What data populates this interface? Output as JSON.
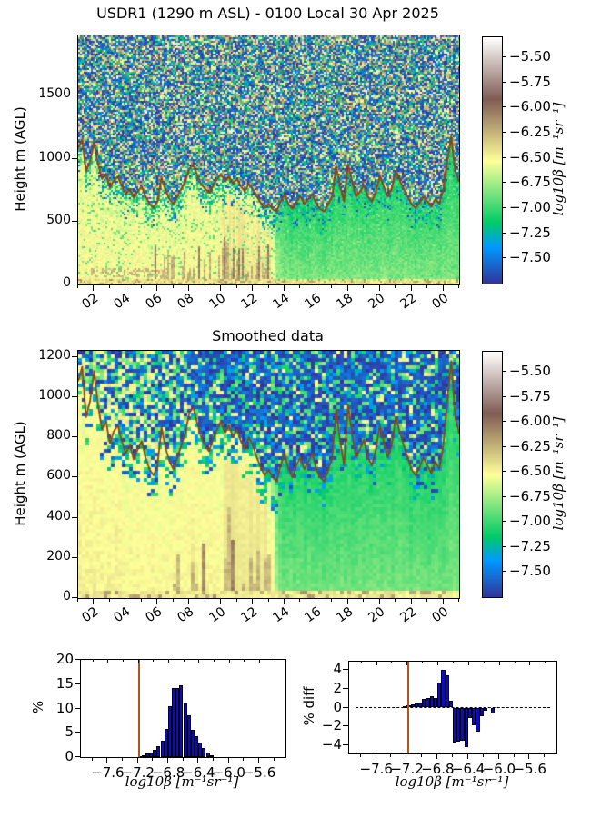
{
  "figure_title": "USDR1 (1290 m ASL) - 0100 Local 30 Apr 2025",
  "colors": {
    "background": "#ffffff",
    "axis": "#000000",
    "bar_fill": "#0a0ac8",
    "bar_edge": "#000000",
    "threshold_line": "#b4541b",
    "layer_line": "#8a4517"
  },
  "colormap": {
    "name": "terrain_r",
    "clim": [
      -7.75,
      -5.3
    ],
    "stops": [
      [
        0.0,
        "#333399"
      ],
      [
        0.15,
        "#0099ff"
      ],
      [
        0.25,
        "#00cc66"
      ],
      [
        0.5,
        "#ffff99"
      ],
      [
        0.75,
        "#805c54"
      ],
      [
        1.0,
        "#ffffff"
      ]
    ]
  },
  "colorbar": {
    "label": "log10β [m⁻¹sr⁻¹]",
    "tick_labels": [
      "−5.50",
      "−5.75",
      "−6.00",
      "−6.25",
      "−6.50",
      "−6.75",
      "−7.00",
      "−7.25",
      "−7.50"
    ],
    "tick_values": [
      -5.5,
      -5.75,
      -6.0,
      -6.25,
      -6.5,
      -6.75,
      -7.0,
      -7.25,
      -7.5
    ]
  },
  "time_axis": {
    "range_hours": [
      1,
      25
    ],
    "tick_labels": [
      "02",
      "04",
      "06",
      "08",
      "10",
      "12",
      "14",
      "16",
      "18",
      "20",
      "22",
      "00"
    ],
    "tick_hours": [
      2,
      4,
      6,
      8,
      10,
      12,
      14,
      16,
      18,
      20,
      22,
      24
    ],
    "minor_step_hours": 1
  },
  "layer_height": {
    "name": "mixed-layer-height-line",
    "t_start": 1,
    "t_step": 0.25,
    "heights_m": [
      1080,
      1150,
      900,
      980,
      1130,
      960,
      840,
      880,
      770,
      830,
      860,
      780,
      720,
      760,
      690,
      740,
      780,
      700,
      640,
      610,
      660,
      850,
      750,
      680,
      640,
      700,
      760,
      820,
      920,
      950,
      870,
      800,
      760,
      730,
      790,
      840,
      880,
      820,
      860,
      800,
      840,
      780,
      740,
      800,
      760,
      700,
      650,
      610,
      640,
      600,
      580,
      660,
      720,
      640,
      600,
      660,
      700,
      640,
      680,
      720,
      640,
      600,
      580,
      640,
      700,
      940,
      780,
      660,
      960,
      820,
      700,
      740,
      790,
      700,
      660,
      740,
      860,
      780,
      700,
      760,
      900,
      830,
      760,
      700,
      640,
      610,
      650,
      700,
      660,
      620,
      680,
      640,
      760,
      980,
      1180,
      900,
      820
    ]
  },
  "chart_data": [
    {
      "id": "raw-backscatter",
      "type": "heatmap",
      "title": "USDR1 (1290 m ASL) - 0100 Local 30 Apr 2025",
      "ylabel": "Height m (AGL)",
      "ylim": [
        0,
        1980
      ],
      "ytick_labels": [
        "0",
        "500",
        "1000",
        "1500"
      ],
      "ytick_values": [
        0,
        500,
        1000,
        1500
      ],
      "xtick_labels": [
        "02",
        "04",
        "06",
        "08",
        "10",
        "12",
        "14",
        "16",
        "18",
        "20",
        "22",
        "00"
      ],
      "colorbar_label": "log10β [m⁻¹sr⁻¹]",
      "texture_note": "fine salt-and-pepper noise (blue/tan/green/white) above the mixed layer; smooth pale yellow-green below it; brown surface plumes 06-13h; greener low levels after 13h; brown mixed-layer-height line overlaid"
    },
    {
      "id": "smoothed-backscatter",
      "type": "heatmap",
      "title": "Smoothed data",
      "ylabel": "Height m (AGL)",
      "ylim": [
        0,
        1230
      ],
      "ytick_labels": [
        "0",
        "200",
        "400",
        "600",
        "800",
        "1000",
        "1200"
      ],
      "ytick_values": [
        0,
        200,
        400,
        600,
        800,
        1000,
        1200
      ],
      "xtick_labels": [
        "02",
        "04",
        "06",
        "08",
        "10",
        "12",
        "14",
        "16",
        "18",
        "20",
        "22",
        "00"
      ],
      "colorbar_label": "log10β [m⁻¹sr⁻¹]",
      "texture_note": "coarse blocky version of the raw field: navy/cyan blocks above the layer line, smooth green-yellow below, pale columns 10-13h with brown streaks"
    },
    {
      "id": "beta-histogram",
      "type": "bar",
      "ylabel": "%",
      "xlabel": "log10β [m⁻¹sr⁻¹]",
      "ylim": [
        0,
        20
      ],
      "ytick_labels": [
        "0",
        "5",
        "10",
        "15",
        "20"
      ],
      "ytick_values": [
        0,
        5,
        10,
        15,
        20
      ],
      "xlim": [
        -7.95,
        -5.25
      ],
      "xtick_labels": [
        "−7.6",
        "−7.2",
        "−6.8",
        "−6.4",
        "−6.0",
        "−5.6"
      ],
      "xtick_values": [
        -7.6,
        -7.2,
        -6.8,
        -6.4,
        -6.0,
        -5.6
      ],
      "bin_start": -7.2,
      "bin_width": 0.05,
      "values": [
        0.2,
        0.4,
        0.7,
        1.0,
        1.5,
        2.3,
        3.4,
        5.8,
        10.4,
        14.2,
        14.2,
        14.7,
        11.3,
        8.6,
        5.6,
        4.3,
        3.0,
        1.8,
        0.9,
        0.4
      ],
      "threshold_x": -7.18
    },
    {
      "id": "percent-diff-histogram",
      "type": "bar",
      "ylabel": "% diff",
      "xlabel": "log10β [m⁻¹sr⁻¹]",
      "ylim": [
        -4.85,
        4.85
      ],
      "ytick_labels": [
        "−4",
        "−2",
        "0",
        "2",
        "4"
      ],
      "ytick_values": [
        -4,
        -2,
        0,
        2,
        4
      ],
      "xlim": [
        -7.95,
        -5.25
      ],
      "xtick_labels": [
        "−7.6",
        "−7.2",
        "−6.8",
        "−6.4",
        "−6.0",
        "−5.6"
      ],
      "xtick_values": [
        -7.6,
        -7.2,
        -6.8,
        -6.4,
        -6.0,
        -5.6
      ],
      "bin_start": -7.25,
      "bin_width": 0.05,
      "values": [
        0.15,
        0.2,
        0.35,
        0.4,
        0.55,
        0.9,
        1.05,
        1.2,
        1.05,
        2.6,
        4.0,
        3.4,
        0.7,
        -3.7,
        -3.6,
        -3.5,
        -4.15,
        -1.1,
        -1.85,
        -2.55,
        -0.95,
        -0.3,
        0.0,
        -0.65
      ],
      "threshold_x": -7.18,
      "zero_line_dashed": true
    }
  ]
}
